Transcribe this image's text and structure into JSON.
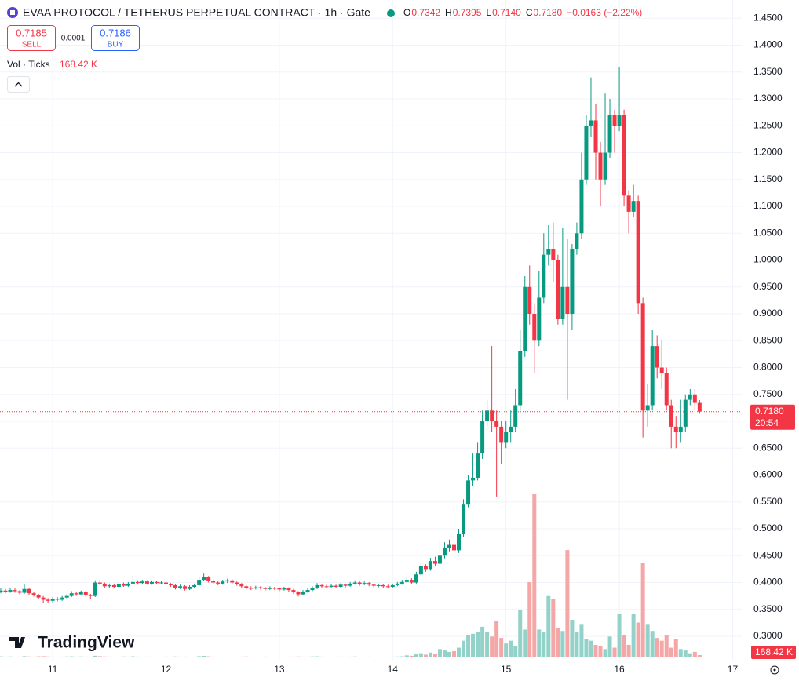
{
  "header": {
    "symbol": "EVAA PROTOCOL / TETHERUS PERPETUAL CONTRACT · 1h · Gate",
    "ohlc": [
      {
        "key": "O",
        "value": "0.7342"
      },
      {
        "key": "H",
        "value": "0.7395"
      },
      {
        "key": "L",
        "value": "0.7140"
      },
      {
        "key": "C",
        "value": "0.7180"
      }
    ],
    "change": "−0.0163 (−2.22%)"
  },
  "trade": {
    "sell_price": "0.7185",
    "sell": "SELL",
    "spread": "0.0001",
    "buy_price": "0.7186",
    "buy": "BUY"
  },
  "volume_legend": "Vol · Ticks",
  "brand": "TradingView",
  "countdown": "20:54",
  "chart_data": {
    "type": "candlestick",
    "x": [
      10.5417,
      10.5833,
      10.625,
      10.6667,
      10.7083,
      10.75,
      10.7917,
      10.8333,
      10.875,
      10.9167,
      10.9583,
      11,
      11.0417,
      11.0833,
      11.125,
      11.1667,
      11.2083,
      11.25,
      11.2917,
      11.3333,
      11.375,
      11.4167,
      11.4583,
      11.5,
      11.5417,
      11.5833,
      11.625,
      11.6667,
      11.7083,
      11.75,
      11.7917,
      11.8333,
      11.875,
      11.9167,
      11.9583,
      12,
      12.0417,
      12.0833,
      12.125,
      12.1667,
      12.2083,
      12.25,
      12.2917,
      12.3333,
      12.375,
      12.4167,
      12.4583,
      12.5,
      12.5417,
      12.5833,
      12.625,
      12.6667,
      12.7083,
      12.75,
      12.7917,
      12.8333,
      12.875,
      12.9167,
      12.9583,
      13,
      13.0417,
      13.0833,
      13.125,
      13.1667,
      13.2083,
      13.25,
      13.2917,
      13.3333,
      13.375,
      13.4167,
      13.4583,
      13.5,
      13.5417,
      13.5833,
      13.625,
      13.6667,
      13.7083,
      13.75,
      13.7917,
      13.8333,
      13.875,
      13.9167,
      13.9583,
      14,
      14.0417,
      14.0833,
      14.125,
      14.1667,
      14.2083,
      14.25,
      14.2917,
      14.3333,
      14.375,
      14.4167,
      14.4583,
      14.5,
      14.5417,
      14.5833,
      14.625,
      14.6667,
      14.7083,
      14.75,
      14.7917,
      14.8333,
      14.875,
      14.9167,
      14.9583,
      15,
      15.0417,
      15.0833,
      15.125,
      15.1667,
      15.2083,
      15.25,
      15.2917,
      15.3333,
      15.375,
      15.4167,
      15.4583,
      15.5,
      15.5417,
      15.5833,
      15.625,
      15.6667,
      15.7083,
      15.75,
      15.7917,
      15.8333,
      15.875,
      15.9167,
      15.9583,
      16,
      16.0417,
      16.0833,
      16.125,
      16.1667,
      16.2083,
      16.25,
      16.2917,
      16.3333,
      16.375,
      16.4167,
      16.4583,
      16.5,
      16.5417,
      16.5833,
      16.625,
      16.6667,
      16.7083
    ],
    "open": [
      0.383,
      0.385,
      0.383,
      0.386,
      0.384,
      0.381,
      0.388,
      0.38,
      0.377,
      0.372,
      0.368,
      0.366,
      0.37,
      0.368,
      0.372,
      0.375,
      0.38,
      0.378,
      0.382,
      0.377,
      0.375,
      0.4,
      0.398,
      0.393,
      0.395,
      0.392,
      0.397,
      0.394,
      0.398,
      0.401,
      0.399,
      0.402,
      0.398,
      0.401,
      0.399,
      0.4,
      0.397,
      0.395,
      0.39,
      0.393,
      0.388,
      0.392,
      0.395,
      0.405,
      0.41,
      0.403,
      0.4,
      0.398,
      0.402,
      0.404,
      0.4,
      0.397,
      0.393,
      0.39,
      0.389,
      0.391,
      0.39,
      0.388,
      0.39,
      0.389,
      0.387,
      0.389,
      0.386,
      0.382,
      0.378,
      0.383,
      0.386,
      0.39,
      0.395,
      0.393,
      0.392,
      0.394,
      0.392,
      0.396,
      0.394,
      0.398,
      0.4,
      0.397,
      0.399,
      0.396,
      0.394,
      0.395,
      0.393,
      0.392,
      0.395,
      0.398,
      0.401,
      0.405,
      0.4,
      0.415,
      0.43,
      0.425,
      0.44,
      0.435,
      0.45,
      0.465,
      0.47,
      0.46,
      0.49,
      0.545,
      0.59,
      0.595,
      0.64,
      0.7,
      0.72,
      0.7,
      0.69,
      0.66,
      0.68,
      0.69,
      0.73,
      0.83,
      0.95,
      0.9,
      0.85,
      0.93,
      1.01,
      1.02,
      1.0,
      0.89,
      0.95,
      0.9,
      1.02,
      1.05,
      1.15,
      1.25,
      1.26,
      1.2,
      1.15,
      1.2,
      1.27,
      1.25,
      1.27,
      1.12,
      1.09,
      1.11,
      0.92,
      0.72,
      0.73,
      0.84,
      0.8,
      0.79,
      0.73,
      0.69,
      0.68,
      0.69,
      0.74,
      0.75,
      0.7342
    ],
    "high": [
      0.389,
      0.388,
      0.39,
      0.389,
      0.386,
      0.396,
      0.39,
      0.383,
      0.379,
      0.375,
      0.371,
      0.373,
      0.373,
      0.375,
      0.378,
      0.384,
      0.383,
      0.385,
      0.384,
      0.379,
      0.404,
      0.405,
      0.4,
      0.398,
      0.398,
      0.4,
      0.4,
      0.401,
      0.412,
      0.404,
      0.405,
      0.404,
      0.404,
      0.403,
      0.403,
      0.402,
      0.399,
      0.397,
      0.396,
      0.395,
      0.395,
      0.398,
      0.41,
      0.418,
      0.412,
      0.406,
      0.403,
      0.405,
      0.407,
      0.406,
      0.402,
      0.399,
      0.395,
      0.393,
      0.394,
      0.393,
      0.392,
      0.393,
      0.392,
      0.391,
      0.392,
      0.391,
      0.388,
      0.384,
      0.386,
      0.389,
      0.393,
      0.399,
      0.397,
      0.396,
      0.397,
      0.396,
      0.399,
      0.398,
      0.401,
      0.404,
      0.402,
      0.402,
      0.401,
      0.398,
      0.398,
      0.397,
      0.396,
      0.398,
      0.401,
      0.405,
      0.41,
      0.408,
      0.42,
      0.436,
      0.434,
      0.446,
      0.448,
      0.48,
      0.475,
      0.48,
      0.476,
      0.5,
      0.555,
      0.6,
      0.64,
      0.66,
      0.72,
      0.74,
      0.84,
      0.72,
      0.7,
      0.7,
      0.72,
      0.76,
      0.87,
      0.97,
      0.99,
      0.92,
      0.98,
      1.05,
      1.065,
      1.07,
      1.01,
      1.06,
      1.04,
      1.03,
      1.07,
      1.2,
      1.27,
      1.34,
      1.29,
      1.22,
      1.31,
      1.3,
      1.28,
      1.36,
      1.28,
      1.13,
      1.14,
      1.12,
      0.93,
      0.77,
      0.87,
      0.86,
      0.85,
      0.8,
      0.74,
      0.71,
      0.74,
      0.75,
      0.76,
      0.76,
      0.7395
    ],
    "low": [
      0.38,
      0.38,
      0.381,
      0.381,
      0.378,
      0.379,
      0.377,
      0.374,
      0.369,
      0.362,
      0.362,
      0.363,
      0.365,
      0.366,
      0.37,
      0.373,
      0.375,
      0.376,
      0.374,
      0.37,
      0.373,
      0.395,
      0.39,
      0.39,
      0.389,
      0.39,
      0.392,
      0.392,
      0.396,
      0.396,
      0.397,
      0.396,
      0.396,
      0.397,
      0.397,
      0.394,
      0.392,
      0.387,
      0.388,
      0.385,
      0.386,
      0.39,
      0.393,
      0.402,
      0.4,
      0.397,
      0.395,
      0.396,
      0.399,
      0.397,
      0.394,
      0.39,
      0.387,
      0.386,
      0.387,
      0.387,
      0.385,
      0.386,
      0.386,
      0.384,
      0.385,
      0.383,
      0.379,
      0.374,
      0.376,
      0.381,
      0.384,
      0.388,
      0.39,
      0.389,
      0.39,
      0.389,
      0.39,
      0.391,
      0.392,
      0.396,
      0.394,
      0.395,
      0.393,
      0.391,
      0.391,
      0.39,
      0.389,
      0.39,
      0.393,
      0.396,
      0.399,
      0.397,
      0.398,
      0.412,
      0.42,
      0.422,
      0.43,
      0.432,
      0.445,
      0.458,
      0.452,
      0.455,
      0.485,
      0.54,
      0.58,
      0.59,
      0.63,
      0.69,
      0.68,
      0.56,
      0.62,
      0.65,
      0.66,
      0.68,
      0.72,
      0.82,
      0.88,
      0.79,
      0.84,
      0.92,
      0.99,
      0.96,
      0.88,
      0.88,
      0.74,
      0.87,
      1.01,
      1.04,
      1.14,
      1.23,
      1.15,
      1.1,
      1.14,
      1.19,
      1.2,
      1.24,
      1.1,
      1.05,
      1.08,
      0.9,
      0.67,
      0.69,
      0.72,
      0.78,
      0.76,
      0.72,
      0.65,
      0.65,
      0.66,
      0.68,
      0.73,
      0.72,
      0.714
    ],
    "close": [
      0.385,
      0.383,
      0.386,
      0.384,
      0.381,
      0.388,
      0.38,
      0.377,
      0.372,
      0.368,
      0.366,
      0.37,
      0.368,
      0.372,
      0.375,
      0.38,
      0.378,
      0.382,
      0.377,
      0.375,
      0.4,
      0.398,
      0.393,
      0.395,
      0.392,
      0.397,
      0.394,
      0.398,
      0.401,
      0.399,
      0.402,
      0.398,
      0.401,
      0.399,
      0.4,
      0.397,
      0.395,
      0.39,
      0.393,
      0.388,
      0.392,
      0.395,
      0.405,
      0.41,
      0.403,
      0.4,
      0.398,
      0.402,
      0.404,
      0.4,
      0.397,
      0.393,
      0.39,
      0.389,
      0.391,
      0.39,
      0.388,
      0.39,
      0.389,
      0.387,
      0.389,
      0.386,
      0.382,
      0.378,
      0.383,
      0.386,
      0.39,
      0.395,
      0.393,
      0.392,
      0.394,
      0.392,
      0.396,
      0.394,
      0.398,
      0.4,
      0.397,
      0.399,
      0.396,
      0.394,
      0.395,
      0.393,
      0.392,
      0.395,
      0.398,
      0.401,
      0.405,
      0.4,
      0.415,
      0.43,
      0.425,
      0.44,
      0.435,
      0.45,
      0.465,
      0.47,
      0.46,
      0.49,
      0.545,
      0.59,
      0.595,
      0.64,
      0.7,
      0.72,
      0.7,
      0.69,
      0.66,
      0.68,
      0.69,
      0.73,
      0.83,
      0.95,
      0.9,
      0.85,
      0.93,
      1.01,
      1.02,
      1.0,
      0.89,
      0.95,
      0.9,
      1.02,
      1.05,
      1.15,
      1.25,
      1.26,
      1.2,
      1.15,
      1.2,
      1.27,
      1.25,
      1.27,
      1.12,
      1.09,
      1.11,
      0.92,
      0.72,
      0.73,
      0.84,
      0.8,
      0.79,
      0.73,
      0.69,
      0.68,
      0.69,
      0.74,
      0.75,
      0.7342,
      0.718
    ],
    "volume": [
      80000,
      60000,
      70000,
      50000,
      60000,
      90000,
      70000,
      60000,
      80000,
      90000,
      70000,
      60000,
      50000,
      60000,
      70000,
      80000,
      60000,
      70000,
      60000,
      50000,
      120000,
      90000,
      70000,
      60000,
      50000,
      60000,
      70000,
      60000,
      80000,
      60000,
      50000,
      60000,
      50000,
      40000,
      50000,
      60000,
      50000,
      70000,
      60000,
      60000,
      50000,
      60000,
      90000,
      110000,
      80000,
      60000,
      50000,
      60000,
      50000,
      60000,
      50000,
      60000,
      70000,
      50000,
      40000,
      50000,
      60000,
      50000,
      40000,
      50000,
      40000,
      50000,
      60000,
      70000,
      60000,
      60000,
      70000,
      80000,
      60000,
      50000,
      50000,
      40000,
      60000,
      50000,
      60000,
      70000,
      50000,
      50000,
      60000,
      50000,
      40000,
      50000,
      50000,
      60000,
      70000,
      80000,
      150000,
      120000,
      250000,
      300000,
      200000,
      350000,
      250000,
      600000,
      500000,
      400000,
      450000,
      700000,
      1200000,
      1600000,
      1700000,
      1800000,
      2200000,
      1800000,
      1500000,
      2600000,
      1400000,
      1000000,
      1200000,
      800000,
      3400000,
      2000000,
      5400000,
      11700000,
      2000000,
      1800000,
      4400000,
      4200000,
      2100000,
      1900000,
      7700000,
      2700000,
      1800000,
      2400000,
      1300000,
      1200000,
      900000,
      800000,
      600000,
      1500000,
      700000,
      3100000,
      1600000,
      900000,
      3100000,
      2500000,
      6800000,
      2400000,
      1900000,
      1400000,
      1200000,
      1600000,
      700000,
      1300000,
      600000,
      500000,
      300000,
      400000,
      168420
    ],
    "volume_label": {
      "value": 168420,
      "label": "168.42 K"
    },
    "last_price": {
      "value": 0.718,
      "label": "0.7180"
    },
    "up_color": "#089981",
    "down_color": "#f23645",
    "volume_up_color": "#92d2c9",
    "volume_down_color": "#f5a6a6",
    "xlim": [
      10.535,
      17.08
    ],
    "xticks": [
      11,
      12,
      13,
      14,
      15,
      16,
      17
    ],
    "ylim": [
      0.246,
      1.484
    ],
    "yticks": [
      {
        "value": 0.3,
        "label": "0.3000"
      },
      {
        "value": 0.35,
        "label": "0.3500"
      },
      {
        "value": 0.4,
        "label": "0.4000"
      },
      {
        "value": 0.45,
        "label": "0.4500"
      },
      {
        "value": 0.5,
        "label": "0.5000"
      },
      {
        "value": 0.55,
        "label": "0.5500"
      },
      {
        "value": 0.6,
        "label": "0.6000"
      },
      {
        "value": 0.65,
        "label": "0.6500"
      },
      {
        "value": 0.7,
        "label": "0.7000"
      },
      {
        "value": 0.75,
        "label": "0.7500"
      },
      {
        "value": 0.8,
        "label": "0.8000"
      },
      {
        "value": 0.85,
        "label": "0.8500"
      },
      {
        "value": 0.9,
        "label": "0.9000"
      },
      {
        "value": 0.95,
        "label": "0.9500"
      },
      {
        "value": 1.0,
        "label": "1.0000"
      },
      {
        "value": 1.05,
        "label": "1.0500"
      },
      {
        "value": 1.1,
        "label": "1.1000"
      },
      {
        "value": 1.15,
        "label": "1.1500"
      },
      {
        "value": 1.2,
        "label": "1.2000"
      },
      {
        "value": 1.25,
        "label": "1.2500"
      },
      {
        "value": 1.3,
        "label": "1.3000"
      },
      {
        "value": 1.35,
        "label": "1.3500"
      },
      {
        "value": 1.4,
        "label": "1.4000"
      },
      {
        "value": 1.45,
        "label": "1.4500"
      }
    ],
    "grid": true
  }
}
